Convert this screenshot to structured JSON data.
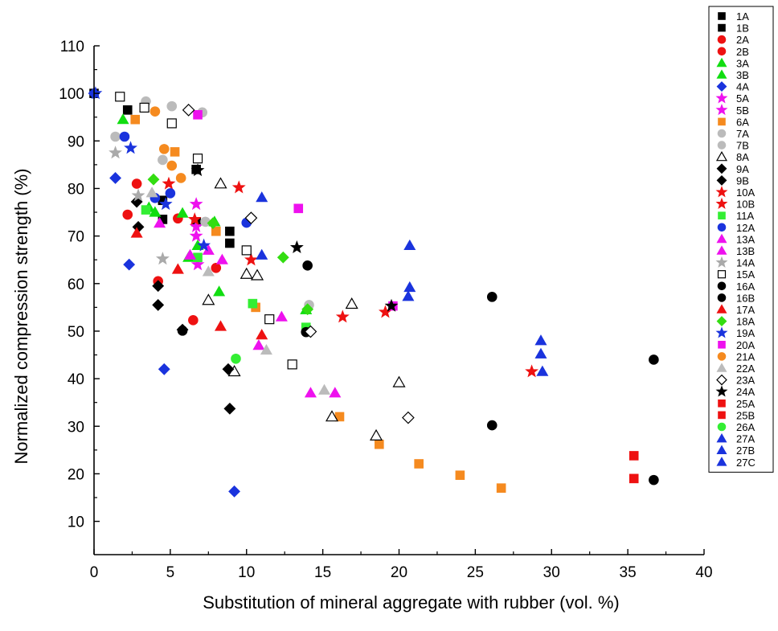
{
  "chart_data": {
    "type": "scatter",
    "xlabel": "Substitution of mineral aggregate with rubber (vol. %)",
    "ylabel": "Normalized compression strength (%)",
    "xlim": [
      0,
      40
    ],
    "ylim": [
      3,
      110
    ],
    "xticks": [
      0,
      5,
      10,
      15,
      20,
      25,
      30,
      35,
      40
    ],
    "yticks": [
      10,
      20,
      30,
      40,
      50,
      60,
      70,
      80,
      90,
      100,
      110
    ],
    "grid": false,
    "legend_position": "right",
    "series": [
      {
        "name": "1A",
        "marker": "square",
        "color": "#000000",
        "filled": true,
        "points": [
          [
            0,
            100
          ],
          [
            2.2,
            96.5
          ],
          [
            4.5,
            73.5
          ],
          [
            6.7,
            73
          ],
          [
            8.9,
            68.5
          ],
          [
            6.7,
            84
          ]
        ]
      },
      {
        "name": "1B",
        "marker": "square",
        "color": "#000000",
        "filled": true,
        "points": [
          [
            4.5,
            77.5
          ],
          [
            8.9,
            71
          ]
        ]
      },
      {
        "name": "2A",
        "marker": "circle",
        "color": "#ee1111",
        "filled": true,
        "points": [
          [
            2.8,
            81
          ],
          [
            2.2,
            74.5
          ],
          [
            4.2,
            60.5
          ],
          [
            6.5,
            52.3
          ],
          [
            5.5,
            73.7
          ]
        ]
      },
      {
        "name": "2B",
        "marker": "circle",
        "color": "#ee1111",
        "filled": true,
        "points": [
          [
            8,
            63.3
          ]
        ]
      },
      {
        "name": "3A",
        "marker": "triangle",
        "color": "#11dd11",
        "filled": true,
        "points": [
          [
            1.9,
            94.5
          ],
          [
            3.6,
            76
          ],
          [
            5.8,
            74.8
          ],
          [
            6.2,
            65.5
          ],
          [
            8.2,
            58.3
          ],
          [
            13.9,
            54.5
          ]
        ]
      },
      {
        "name": "3B",
        "marker": "triangle",
        "color": "#11dd11",
        "filled": true,
        "points": [
          [
            4,
            75
          ],
          [
            6.8,
            68
          ],
          [
            7.9,
            73
          ]
        ]
      },
      {
        "name": "4A",
        "marker": "diamond",
        "color": "#1a33dd",
        "filled": true,
        "points": [
          [
            0,
            100
          ],
          [
            1.4,
            82.2
          ],
          [
            2.3,
            64
          ],
          [
            4.6,
            42
          ],
          [
            9.2,
            16.3
          ]
        ]
      },
      {
        "name": "5A",
        "marker": "star",
        "color": "#ee11ee",
        "filled": true,
        "points": [
          [
            6.7,
            76.7
          ],
          [
            6.7,
            70
          ],
          [
            6.8,
            64
          ]
        ]
      },
      {
        "name": "5B",
        "marker": "star",
        "color": "#ee11ee",
        "filled": true,
        "points": [
          [
            6.7,
            72
          ]
        ]
      },
      {
        "name": "6A",
        "marker": "square",
        "color": "#f58a1f",
        "filled": true,
        "points": [
          [
            2.7,
            94.5
          ],
          [
            5.3,
            87.7
          ],
          [
            8,
            71
          ],
          [
            10.6,
            55
          ],
          [
            16.1,
            32
          ],
          [
            18.7,
            26.2
          ],
          [
            21.3,
            22.1
          ],
          [
            24,
            19.7
          ],
          [
            26.7,
            17
          ]
        ]
      },
      {
        "name": "7A",
        "marker": "circle",
        "color": "#bbbbbb",
        "filled": true,
        "points": [
          [
            1.4,
            90.9
          ],
          [
            3.4,
            98.3
          ],
          [
            4.5,
            86
          ],
          [
            5.1,
            97.3
          ],
          [
            7.1,
            96
          ],
          [
            14.1,
            55.5
          ]
        ]
      },
      {
        "name": "7B",
        "marker": "circle",
        "color": "#bbbbbb",
        "filled": true,
        "points": [
          [
            7.3,
            73
          ]
        ]
      },
      {
        "name": "8A",
        "marker": "triangle",
        "color": "#000000",
        "filled": false,
        "points": [
          [
            7.5,
            56.5
          ],
          [
            8.3,
            81
          ],
          [
            9.2,
            41.5
          ],
          [
            10,
            62
          ],
          [
            10.7,
            61.7
          ],
          [
            15.6,
            32
          ],
          [
            16.9,
            55.7
          ],
          [
            18.5,
            28
          ],
          [
            20,
            39.2
          ]
        ]
      },
      {
        "name": "9A",
        "marker": "diamond",
        "color": "#000000",
        "filled": true,
        "points": [
          [
            2.8,
            77.2
          ],
          [
            4.2,
            59.5
          ],
          [
            4.2,
            55.5
          ],
          [
            5.8,
            50.3
          ],
          [
            8.8,
            42
          ],
          [
            8.9,
            33.7
          ]
        ]
      },
      {
        "name": "9B",
        "marker": "diamond",
        "color": "#000000",
        "filled": true,
        "points": [
          [
            2.9,
            71.9
          ]
        ]
      },
      {
        "name": "10A",
        "marker": "star",
        "color": "#ee1111",
        "filled": true,
        "points": [
          [
            4.9,
            81
          ],
          [
            9.5,
            80.2
          ],
          [
            10.3,
            65
          ],
          [
            16.3,
            53
          ],
          [
            19.1,
            54
          ],
          [
            28.7,
            41.5
          ]
        ]
      },
      {
        "name": "10B",
        "marker": "star",
        "color": "#ee1111",
        "filled": true,
        "points": [
          [
            6.6,
            73.5
          ]
        ]
      },
      {
        "name": "11A",
        "marker": "square",
        "color": "#33ee33",
        "filled": true,
        "points": [
          [
            3.4,
            75.5
          ],
          [
            6.8,
            65.5
          ],
          [
            10.4,
            55.8
          ],
          [
            13.9,
            50.8
          ]
        ]
      },
      {
        "name": "12A",
        "marker": "circle",
        "color": "#1a33dd",
        "filled": true,
        "points": [
          [
            2,
            90.9
          ],
          [
            4,
            78
          ],
          [
            5,
            79
          ],
          [
            10,
            72.8
          ]
        ]
      },
      {
        "name": "13A",
        "marker": "triangle",
        "color": "#ee11ee",
        "filled": true,
        "points": [
          [
            4.3,
            72.7
          ],
          [
            6.3,
            66
          ],
          [
            8.4,
            65
          ],
          [
            10.8,
            47
          ],
          [
            12.3,
            53
          ],
          [
            14.2,
            37
          ],
          [
            15.8,
            37
          ]
        ]
      },
      {
        "name": "13B",
        "marker": "triangle",
        "color": "#ee11ee",
        "filled": true,
        "points": [
          [
            7.5,
            67
          ]
        ]
      },
      {
        "name": "14A",
        "marker": "star",
        "color": "#aaaaaa",
        "filled": true,
        "points": [
          [
            1.4,
            87.5
          ],
          [
            2.9,
            78.5
          ],
          [
            4.5,
            65.2
          ]
        ]
      },
      {
        "name": "15A",
        "marker": "square",
        "color": "#000000",
        "filled": false,
        "points": [
          [
            1.7,
            99.3
          ],
          [
            3.3,
            97
          ],
          [
            5.1,
            93.7
          ],
          [
            6.8,
            86.3
          ],
          [
            10,
            67
          ],
          [
            11.5,
            52.5
          ],
          [
            13,
            43
          ]
        ]
      },
      {
        "name": "16A",
        "marker": "circle",
        "color": "#000000",
        "filled": true,
        "points": [
          [
            14,
            63.8
          ],
          [
            13.9,
            49.8
          ],
          [
            26.1,
            57.2
          ],
          [
            26.1,
            30.2
          ],
          [
            36.7,
            44
          ],
          [
            36.7,
            18.7
          ]
        ]
      },
      {
        "name": "16B",
        "marker": "circle",
        "color": "#000000",
        "filled": true,
        "points": [
          [
            5.8,
            50.1
          ]
        ]
      },
      {
        "name": "17A",
        "marker": "triangle",
        "color": "#ee1111",
        "filled": true,
        "points": [
          [
            2.8,
            70.6
          ],
          [
            5.5,
            63
          ],
          [
            8.3,
            51
          ],
          [
            11,
            49.2
          ]
        ]
      },
      {
        "name": "18A",
        "marker": "diamond",
        "color": "#33dd11",
        "filled": true,
        "points": [
          [
            3.9,
            81.9
          ],
          [
            7.8,
            72.7
          ],
          [
            12.4,
            65.5
          ],
          [
            14,
            54.6
          ]
        ]
      },
      {
        "name": "19A",
        "marker": "star",
        "color": "#1a33dd",
        "filled": true,
        "points": [
          [
            0.1,
            100
          ],
          [
            2.4,
            88.5
          ],
          [
            4.7,
            76.7
          ],
          [
            7.2,
            68
          ]
        ]
      },
      {
        "name": "20A",
        "marker": "square",
        "color": "#ee11ee",
        "filled": true,
        "points": [
          [
            6.8,
            95.5
          ],
          [
            13.4,
            75.8
          ],
          [
            19.6,
            55.3
          ]
        ]
      },
      {
        "name": "21A",
        "marker": "circle",
        "color": "#f58a1f",
        "filled": true,
        "points": [
          [
            4,
            96.2
          ],
          [
            4.6,
            88.3
          ],
          [
            5.1,
            84.8
          ],
          [
            5.7,
            82.2
          ]
        ]
      },
      {
        "name": "22A",
        "marker": "triangle",
        "color": "#bbbbbb",
        "filled": true,
        "points": [
          [
            3.8,
            79.1
          ],
          [
            7.5,
            62.5
          ],
          [
            11.3,
            46
          ],
          [
            15.1,
            37.6
          ]
        ]
      },
      {
        "name": "23A",
        "marker": "diamond",
        "color": "#000000",
        "filled": false,
        "points": [
          [
            6.2,
            96.5
          ],
          [
            10.3,
            73.8
          ],
          [
            14.2,
            49.9
          ],
          [
            20.6,
            31.8
          ]
        ]
      },
      {
        "name": "24A",
        "marker": "star",
        "color": "#000000",
        "filled": true,
        "points": [
          [
            6.8,
            83.8
          ],
          [
            13.3,
            67.6
          ],
          [
            19.5,
            55.3
          ]
        ]
      },
      {
        "name": "25A",
        "marker": "square",
        "color": "#ee1111",
        "filled": true,
        "points": [
          [
            35.4,
            23.8
          ]
        ]
      },
      {
        "name": "25B",
        "marker": "square",
        "color": "#ee1111",
        "filled": true,
        "points": [
          [
            35.4,
            19
          ]
        ]
      },
      {
        "name": "26A",
        "marker": "circle",
        "color": "#33ee33",
        "filled": true,
        "points": [
          [
            9.3,
            44.2
          ]
        ]
      },
      {
        "name": "27A",
        "marker": "triangle",
        "color": "#1a33dd",
        "filled": true,
        "points": [
          [
            11,
            78.1
          ],
          [
            20.7,
            68
          ],
          [
            29.3,
            48
          ],
          [
            29.3,
            45.2
          ]
        ]
      },
      {
        "name": "27B",
        "marker": "triangle",
        "color": "#1a33dd",
        "filled": true,
        "points": [
          [
            11,
            66
          ],
          [
            20.7,
            59.2
          ]
        ]
      },
      {
        "name": "27C",
        "marker": "triangle",
        "color": "#1a33dd",
        "filled": true,
        "points": [
          [
            20.6,
            57.3
          ],
          [
            29.4,
            41.5
          ]
        ]
      }
    ]
  }
}
